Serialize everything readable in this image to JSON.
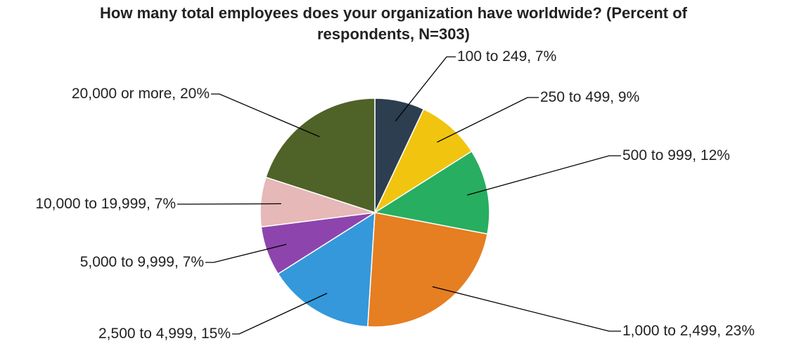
{
  "chart_data": {
    "type": "pie",
    "title_line1": "How many total employees does your organization have worldwide? (Percent of",
    "title_line2": "respondents, N=303)",
    "categories": [
      "100 to 249",
      "250 to 499",
      "500 to 999",
      "1,000 to 2,499",
      "2,500 to 4,999",
      "5,000 to 9,999",
      "10,000 to 19,999",
      "20,000 or more"
    ],
    "values": [
      7,
      9,
      12,
      23,
      15,
      7,
      7,
      20
    ],
    "data_labels": [
      "100 to 249, 7%",
      "250 to 499, 9%",
      "500 to 999, 12%",
      "1,000 to 2,499, 23%",
      "2,500 to 4,999, 15%",
      "5,000 to 9,999, 7%",
      "10,000 to 19,999, 7%",
      "20,000 or more, 20%"
    ],
    "colors": [
      "#2c3e50",
      "#f1c40f",
      "#27ae60",
      "#e67e22",
      "#3498db",
      "#8e44ad",
      "#e6b8b7",
      "#4f6228"
    ],
    "unit": "%",
    "legend": "none"
  }
}
